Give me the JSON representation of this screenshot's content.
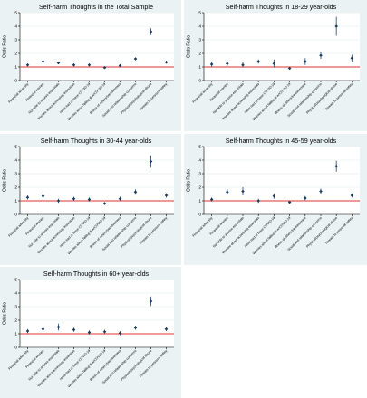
{
  "chart_data": [
    {
      "type": "scatter",
      "title": "Self-harm Thoughts in the Total Sample",
      "ylabel": "Odds Ratio",
      "ylim": [
        0,
        5
      ],
      "yticks": [
        "0",
        "1",
        "2",
        "3",
        "4",
        "5"
      ],
      "reference_line": 1,
      "categories": [
        "Financial adversity",
        "Financial worries",
        "Not able to access essentials",
        "Worries about accessing essentials",
        "Have had or have COVID-19",
        "Worries about falling ill w/COVID-19",
        "Illness of others/bereavement",
        "Social and relationship concerns",
        "Physical/psychological abuse",
        "Threats to personal safety"
      ],
      "values": [
        1.15,
        1.4,
        1.3,
        1.15,
        1.15,
        0.95,
        1.1,
        1.6,
        3.6,
        1.35
      ],
      "ci_low": [
        1.05,
        1.3,
        1.2,
        1.05,
        1.05,
        0.88,
        1.0,
        1.5,
        3.35,
        1.25
      ],
      "ci_high": [
        1.25,
        1.5,
        1.4,
        1.25,
        1.25,
        1.02,
        1.2,
        1.7,
        3.85,
        1.45
      ]
    },
    {
      "type": "scatter",
      "title": "Self-harm Thoughts in 18-29 year-olds",
      "ylabel": "Odds Ratio",
      "ylim": [
        0,
        5
      ],
      "yticks": [
        "0",
        "1",
        "2",
        "3",
        "4",
        "5"
      ],
      "reference_line": 1,
      "categories": [
        "Financial adversity",
        "Financial worries",
        "Not able to access essentials",
        "Worries about accessing essentials",
        "Have had or have COVID-19",
        "Worries about falling ill w/COVID-19",
        "Illness of others/bereavement",
        "Social and relationship concerns",
        "Physical/psychological abuse",
        "Threats to personal safety"
      ],
      "values": [
        1.2,
        1.25,
        1.15,
        1.4,
        1.25,
        0.9,
        1.4,
        1.85,
        4.0,
        1.65
      ],
      "ci_low": [
        1.0,
        1.1,
        0.95,
        1.25,
        0.95,
        0.8,
        1.15,
        1.6,
        3.3,
        1.4
      ],
      "ci_high": [
        1.4,
        1.4,
        1.35,
        1.55,
        1.55,
        1.0,
        1.65,
        2.1,
        4.7,
        1.9
      ]
    },
    {
      "type": "scatter",
      "title": "Self-harm Thoughts in 30-44 year-olds",
      "ylabel": "Odds Ratio",
      "ylim": [
        0,
        5
      ],
      "yticks": [
        "0",
        "1",
        "2",
        "3",
        "4",
        "5"
      ],
      "reference_line": 1,
      "categories": [
        "Financial adversity",
        "Financial worries",
        "Not able to access essentials",
        "Worries about accessing essentials",
        "Have had or have COVID-19",
        "Worries about falling ill w/COVID-19",
        "Illness of others/bereavement",
        "Social and relationship concerns",
        "Physical/psychological abuse",
        "Threats to personal safety"
      ],
      "values": [
        1.25,
        1.35,
        1.0,
        1.15,
        1.1,
        0.8,
        1.15,
        1.65,
        3.9,
        1.4
      ],
      "ci_low": [
        1.1,
        1.2,
        0.85,
        1.0,
        0.95,
        0.7,
        1.0,
        1.45,
        3.45,
        1.25
      ],
      "ci_high": [
        1.4,
        1.5,
        1.15,
        1.3,
        1.25,
        0.9,
        1.3,
        1.85,
        4.35,
        1.55
      ]
    },
    {
      "type": "scatter",
      "title": "Self-harm Thoughts in 45-59 year-olds",
      "ylabel": "Odds Ratio",
      "ylim": [
        0,
        5
      ],
      "yticks": [
        "0",
        "1",
        "2",
        "3",
        "4",
        "5"
      ],
      "reference_line": 1,
      "categories": [
        "Financial adversity",
        "Financial worries",
        "Not able to access essentials",
        "Worries about accessing essentials",
        "Have had or have COVID-19",
        "Worries about falling ill w/COVID-19",
        "Illness of others/bereavement",
        "Social and relationship concerns",
        "Physical/psychological abuse",
        "Threats to personal safety"
      ],
      "values": [
        1.1,
        1.65,
        1.7,
        1.0,
        1.35,
        0.9,
        1.2,
        1.7,
        3.55,
        1.4
      ],
      "ci_low": [
        0.95,
        1.45,
        1.4,
        0.85,
        1.15,
        0.8,
        1.05,
        1.5,
        3.15,
        1.25
      ],
      "ci_high": [
        1.25,
        1.85,
        2.0,
        1.15,
        1.55,
        1.0,
        1.35,
        1.9,
        3.95,
        1.55
      ]
    },
    {
      "type": "scatter",
      "title": "Self-harm Thoughts in 60+ year-olds",
      "ylabel": "Odds Ratio",
      "ylim": [
        0,
        5
      ],
      "yticks": [
        "0",
        "1",
        "2",
        "3",
        "4",
        "5"
      ],
      "reference_line": 1,
      "categories": [
        "Financial adversity",
        "Financial worries",
        "Not able to access essentials",
        "Worries about accessing essentials",
        "Have had or have COVID-19",
        "Worries about falling ill w/COVID-19",
        "Illness of others/bereavement",
        "Social and relationship concerns",
        "Physical/psychological abuse",
        "Threats to personal safety"
      ],
      "values": [
        1.2,
        1.35,
        1.5,
        1.3,
        1.1,
        1.15,
        1.05,
        1.45,
        3.4,
        1.35
      ],
      "ci_low": [
        1.05,
        1.2,
        1.25,
        1.15,
        0.95,
        1.0,
        0.9,
        1.3,
        3.05,
        1.2
      ],
      "ci_high": [
        1.35,
        1.5,
        1.75,
        1.45,
        1.25,
        1.3,
        1.2,
        1.6,
        3.75,
        1.5
      ]
    }
  ],
  "colors": {
    "panel_background": "#eaf2f3",
    "plot_background": "#ffffff",
    "reference_line": "#e03030",
    "marker": "#1a3a5a",
    "ci_line": "#4a6a88"
  }
}
